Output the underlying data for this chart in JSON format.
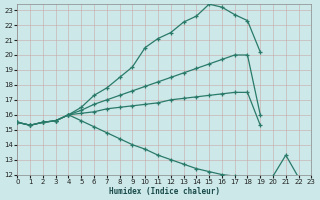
{
  "background_color": "#cce8e8",
  "grid_color": "#aad4d4",
  "line_color": "#2a7a6a",
  "xlim": [
    0,
    23
  ],
  "ylim": [
    12,
    23.4
  ],
  "xticks": [
    0,
    1,
    2,
    3,
    4,
    5,
    6,
    7,
    8,
    9,
    10,
    11,
    12,
    13,
    14,
    15,
    16,
    17,
    18,
    19,
    20,
    21,
    22,
    23
  ],
  "yticks": [
    12,
    13,
    14,
    15,
    16,
    17,
    18,
    19,
    20,
    21,
    22,
    23
  ],
  "xlabel": "Humidex (Indice chaleur)",
  "curves": [
    {
      "x": [
        0,
        1,
        2,
        3,
        4,
        5,
        6,
        7,
        8,
        9,
        10,
        11,
        12,
        13,
        14,
        15,
        16,
        17,
        18,
        19
      ],
      "y": [
        15.5,
        15.3,
        15.5,
        15.6,
        16.0,
        16.5,
        17.3,
        17.8,
        18.5,
        19.2,
        20.5,
        21.1,
        21.5,
        22.2,
        22.6,
        23.4,
        23.2,
        22.7,
        22.3,
        20.2
      ]
    },
    {
      "x": [
        0,
        1,
        2,
        3,
        4,
        5,
        6,
        7,
        8,
        9,
        10,
        11,
        12,
        13,
        14,
        15,
        16,
        17,
        18,
        19
      ],
      "y": [
        15.5,
        15.3,
        15.5,
        15.6,
        16.0,
        16.3,
        16.7,
        17.0,
        17.3,
        17.6,
        17.9,
        18.2,
        18.5,
        18.8,
        19.1,
        19.4,
        19.7,
        20.0,
        20.0,
        16.0
      ]
    },
    {
      "x": [
        0,
        1,
        2,
        3,
        4,
        5,
        6,
        7,
        8,
        9,
        10,
        11,
        12,
        13,
        14,
        15,
        16,
        17,
        18,
        19
      ],
      "y": [
        15.5,
        15.3,
        15.5,
        15.6,
        16.0,
        16.1,
        16.2,
        16.4,
        16.5,
        16.6,
        16.7,
        16.8,
        17.0,
        17.1,
        17.2,
        17.3,
        17.4,
        17.5,
        17.5,
        15.3
      ]
    },
    {
      "x": [
        0,
        1,
        2,
        3,
        4,
        5,
        6,
        7,
        8,
        9,
        10,
        11,
        12,
        13,
        14,
        15,
        16,
        17,
        18,
        19,
        20,
        21,
        22
      ],
      "y": [
        15.5,
        15.3,
        15.5,
        15.6,
        16.0,
        15.6,
        15.2,
        14.8,
        14.4,
        14.0,
        13.7,
        13.3,
        13.0,
        12.7,
        12.4,
        12.2,
        12.0,
        11.9,
        11.8,
        11.8,
        11.9,
        13.3,
        11.8
      ]
    }
  ]
}
